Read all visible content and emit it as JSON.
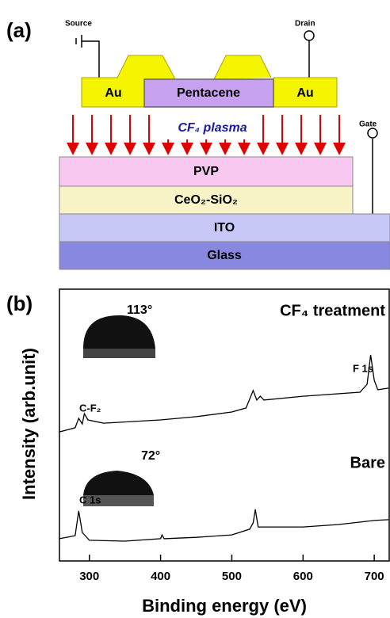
{
  "panel_a": {
    "label": "(a)",
    "source": "Source",
    "drain": "Drain",
    "gate": "Gate",
    "electrodes": [
      "Au",
      "Au"
    ],
    "semiconductor": "Pentacene",
    "plasma": "CF₄ plasma",
    "layers": [
      "PVP",
      "CeO₂-SiO₂",
      "ITO",
      "Glass"
    ]
  },
  "chart_data": {
    "type": "line",
    "panel_label": "(b)",
    "xlabel": "Binding energy (eV)",
    "ylabel": "Intensity (arb.unit)",
    "xlim": [
      258,
      721
    ],
    "xticks": [
      300,
      400,
      500,
      600,
      700
    ],
    "ylim": [
      0,
      100
    ],
    "series": [
      {
        "name": "CF₄ treatment",
        "color": "#000000",
        "x": [
          258,
          280,
          285,
          290,
          293,
          298,
          320,
          400,
          450,
          500,
          520,
          530,
          535,
          540,
          545,
          600,
          680,
          690,
          695,
          700,
          705,
          720
        ],
        "values": [
          47.5,
          49.0,
          52.5,
          50.4,
          54.2,
          51.9,
          50.7,
          51.9,
          53.1,
          54.8,
          56.3,
          62.7,
          59.2,
          60.6,
          59.2,
          60.6,
          62.1,
          65.0,
          75.8,
          66.5,
          63.0,
          63.6
        ]
      },
      {
        "name": "Bare",
        "color": "#000000",
        "x": [
          258,
          280,
          285,
          290,
          300,
          350,
          400,
          402,
          405,
          450,
          500,
          525,
          530,
          533,
          537,
          600,
          650,
          700,
          720
        ],
        "values": [
          8.2,
          9.3,
          18.4,
          10.5,
          7.6,
          7.3,
          8.2,
          9.6,
          8.2,
          8.7,
          9.6,
          11.7,
          14.0,
          19.0,
          12.5,
          12.5,
          13.4,
          14.9,
          15.2
        ]
      }
    ],
    "annotations": [
      "113°",
      "F 1s",
      "C-F₂",
      "72°",
      "C 1s"
    ]
  }
}
